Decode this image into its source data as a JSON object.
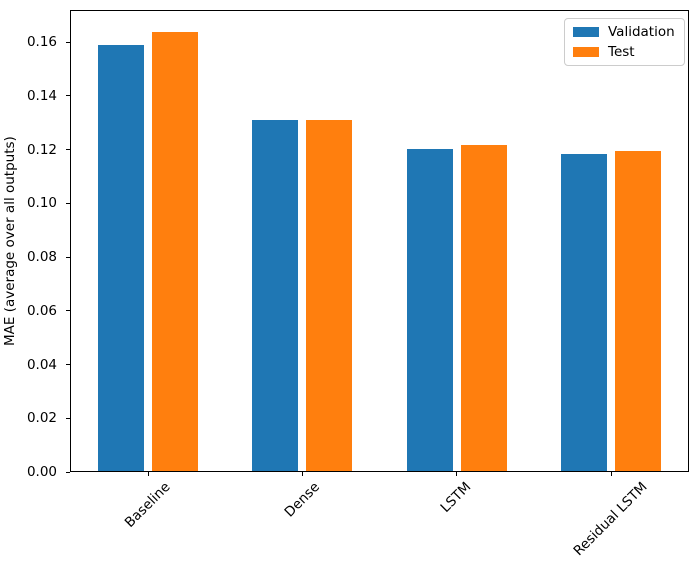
{
  "chart_data": {
    "type": "bar",
    "title": "",
    "categories": [
      "Baseline",
      "Dense",
      "LSTM",
      "Residual LSTM"
    ],
    "series": [
      {
        "name": "Validation",
        "color": "#1f77b4",
        "values": [
          0.159,
          0.131,
          0.1203,
          0.1183
        ]
      },
      {
        "name": "Test",
        "color": "#ff7f0e",
        "values": [
          0.1638,
          0.131,
          0.1218,
          0.1196
        ]
      }
    ],
    "xlabel": "",
    "ylabel": "MAE (average over all outputs)",
    "yticks": [
      0.0,
      0.02,
      0.04,
      0.06,
      0.08,
      0.1,
      0.12,
      0.14,
      0.16
    ],
    "ytick_format_decimals": 2,
    "ylim": [
      0,
      0.172
    ],
    "x_tick_rotation": 45,
    "grid": false,
    "legend": {
      "position": "upper right",
      "entries": [
        "Validation",
        "Test"
      ]
    },
    "frame_color": "#000000",
    "legend_border_color": "#cccccc",
    "background_color": "#ffffff"
  }
}
